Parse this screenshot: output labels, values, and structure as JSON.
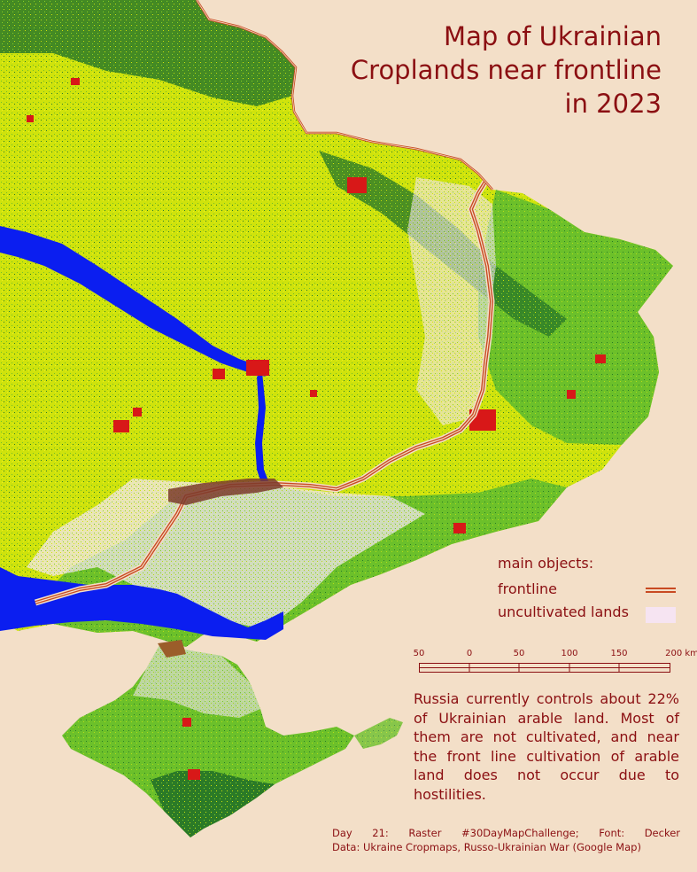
{
  "title": {
    "line1": "Map of Ukrainian",
    "line2": "Croplands near frontline",
    "line3": "in 2023"
  },
  "legend": {
    "heading": "main objects:",
    "frontline_label": "frontline",
    "uncultivated_label": "uncultivated lands"
  },
  "scale": {
    "ticks": [
      "50",
      "0",
      "50",
      "100",
      "150",
      "200 km"
    ]
  },
  "info_text": "Russia currently controls about 22% of Ukrainian arable land. Most of them are not cultivated, and near the front line cultivation of arable land does not occur due to hostilities.",
  "credits": {
    "line1": "Day 21: Raster #30DayMapChallenge; Font: Decker",
    "line2": "Data: Ukraine Cropmaps, Russo-Ukrainian War (Google Map)"
  },
  "colors": {
    "background": "#f3dfc8",
    "text": "#8b0f12",
    "cropland_yellow": "#d6e80a",
    "cropland_light_green": "#7fcf26",
    "forest_dark_green": "#1f6b21",
    "water_blue": "#0a1af0",
    "urban_red": "#d81818",
    "uncultivated_pink": "#f6e4f2",
    "frontline": "#c84a22"
  }
}
